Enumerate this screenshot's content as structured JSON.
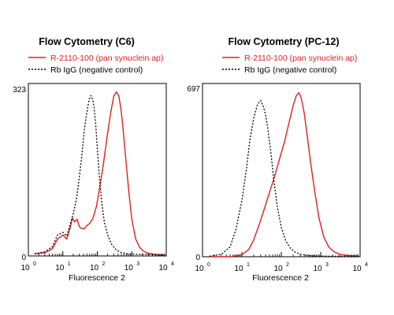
{
  "chart_data": [
    {
      "type": "line",
      "title": "Flow Cytometry (C6)",
      "xlabel": "Fluorescence 2",
      "ylabel": "",
      "x_scale": "log",
      "xlim": [
        1,
        10000
      ],
      "ylim": [
        0,
        323
      ],
      "y_max_label": "323",
      "y_min_label": "0",
      "x_ticks": [
        {
          "base": "10",
          "exp": "0"
        },
        {
          "base": "10",
          "exp": "1"
        },
        {
          "base": "10",
          "exp": "2"
        },
        {
          "base": "10",
          "exp": "3"
        },
        {
          "base": "10",
          "exp": "4"
        }
      ],
      "legend": [
        {
          "name": "R-2110-100 (pan synuclein ap)",
          "color": "#e02020",
          "style": "solid"
        },
        {
          "name": "Rb IgG (negative control)",
          "color": "#000000",
          "style": "dotted"
        }
      ],
      "series": [
        {
          "name": "R-2110-100 (pan synuclein ap)",
          "color": "#e02020",
          "style": "solid",
          "x": [
            1.5,
            3,
            5,
            7,
            10,
            13,
            16,
            19,
            22,
            26,
            30,
            35,
            42,
            50,
            60,
            75,
            95,
            120,
            150,
            190,
            240,
            300,
            360,
            420,
            480,
            530,
            600,
            700,
            850,
            1000,
            1300,
            1700,
            2200,
            3000,
            4500,
            6500,
            9000
          ],
          "values": [
            4,
            6,
            14,
            32,
            40,
            32,
            52,
            72,
            65,
            70,
            56,
            52,
            52,
            58,
            62,
            72,
            95,
            135,
            175,
            225,
            270,
            305,
            313,
            305,
            282,
            258,
            220,
            170,
            112,
            70,
            32,
            16,
            9,
            5,
            3,
            2,
            2
          ]
        },
        {
          "name": "Rb IgG (negative control)",
          "color": "#000000",
          "style": "dotted",
          "x": [
            1.5,
            3,
            5,
            7,
            10,
            13,
            16,
            20,
            25,
            30,
            36,
            42,
            50,
            58,
            65,
            72,
            80,
            90,
            100,
            115,
            135,
            160,
            200,
            260,
            350,
            500,
            800,
            1500,
            3000,
            9000
          ],
          "values": [
            4,
            8,
            18,
            40,
            45,
            38,
            58,
            80,
            110,
            150,
            195,
            240,
            275,
            298,
            306,
            300,
            285,
            250,
            205,
            150,
            100,
            65,
            40,
            22,
            12,
            6,
            4,
            3,
            3,
            2
          ]
        }
      ]
    },
    {
      "type": "line",
      "title": "Flow Cytometry (PC-12)",
      "xlabel": "Fluorescence 2",
      "ylabel": "",
      "x_scale": "log",
      "xlim": [
        1,
        10000
      ],
      "ylim": [
        0,
        697
      ],
      "y_max_label": "697",
      "y_min_label": "0",
      "x_ticks": [
        {
          "base": "10",
          "exp": "0"
        },
        {
          "base": "10",
          "exp": "1"
        },
        {
          "base": "10",
          "exp": "2"
        },
        {
          "base": "10",
          "exp": "3"
        },
        {
          "base": "10",
          "exp": "4"
        }
      ],
      "legend": [
        {
          "name": "R-2110-100 (pan synuclein ap)",
          "color": "#e02020",
          "style": "solid"
        },
        {
          "name": "Rb IgG (negative control)",
          "color": "#000000",
          "style": "dotted"
        }
      ],
      "series": [
        {
          "name": "R-2110-100 (pan synuclein ap)",
          "color": "#e02020",
          "style": "solid",
          "x": [
            1.5,
            5,
            10,
            15,
            20,
            30,
            45,
            65,
            90,
            120,
            160,
            200,
            240,
            280,
            320,
            380,
            450,
            550,
            700,
            900,
            1200,
            1600,
            2200,
            3000,
            5000,
            9000
          ],
          "values": [
            0,
            0,
            8,
            30,
            70,
            150,
            240,
            320,
            400,
            470,
            555,
            620,
            660,
            672,
            650,
            590,
            500,
            390,
            270,
            160,
            80,
            40,
            20,
            10,
            5,
            3
          ]
        },
        {
          "name": "Rb IgG (negative control)",
          "color": "#000000",
          "style": "dotted",
          "x": [
            1.5,
            3,
            5,
            7,
            10,
            13,
            16,
            20,
            25,
            30,
            35,
            40,
            45,
            55,
            65,
            80,
            100,
            130,
            170,
            230,
            320,
            500,
            900,
            2000,
            5000,
            9000
          ],
          "values": [
            2,
            10,
            40,
            110,
            230,
            360,
            480,
            570,
            625,
            640,
            615,
            580,
            530,
            420,
            310,
            200,
            120,
            65,
            35,
            18,
            9,
            5,
            3,
            2,
            2,
            2
          ]
        }
      ]
    }
  ]
}
